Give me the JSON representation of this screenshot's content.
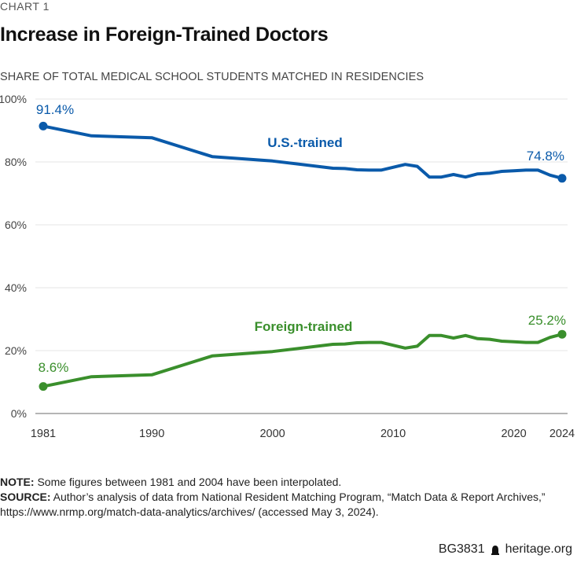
{
  "header": {
    "kicker": "CHART 1",
    "title": "Increase in Foreign-Trained Doctors",
    "subtitle": "SHARE OF TOTAL MEDICAL SCHOOL STUDENTS MATCHED IN RESIDENCIES"
  },
  "chart_data": {
    "type": "line",
    "title": "Increase in Foreign-Trained Doctors",
    "subtitle": "SHARE OF TOTAL MEDICAL SCHOOL STUDENTS MATCHED IN RESIDENCIES",
    "xlabel": "",
    "ylabel": "",
    "xlim": [
      1981,
      2024
    ],
    "ylim": [
      0,
      100
    ],
    "x_ticks": [
      1981,
      1990,
      2000,
      2010,
      2020,
      2024
    ],
    "x_tick_labels": [
      "1981",
      "1990",
      "2000",
      "2010",
      "2020",
      "2024"
    ],
    "y_ticks": [
      0,
      20,
      40,
      60,
      80,
      100
    ],
    "y_tick_labels": [
      "0%",
      "20%",
      "40%",
      "60%",
      "80%",
      "100%"
    ],
    "grid": true,
    "legend": "inline labels",
    "series": [
      {
        "name": "U.S.-trained",
        "color": "#0a5aaa",
        "x": [
          1981,
          1985,
          1990,
          1995,
          2000,
          2005,
          2006,
          2007,
          2008,
          2009,
          2011,
          2012,
          2013,
          2014,
          2015,
          2016,
          2017,
          2018,
          2019,
          2020,
          2021,
          2022,
          2023,
          2024
        ],
        "values": [
          91.4,
          88.3,
          87.7,
          81.7,
          80.3,
          78.0,
          77.9,
          77.5,
          77.4,
          77.4,
          79.2,
          78.6,
          75.2,
          75.2,
          76.0,
          75.2,
          76.2,
          76.4,
          77.0,
          77.2,
          77.4,
          77.4,
          75.8,
          74.8
        ],
        "start_label": "91.4%",
        "end_label": "74.8%"
      },
      {
        "name": "Foreign-trained",
        "color": "#3a8f2c",
        "x": [
          1981,
          1985,
          1990,
          1995,
          2000,
          2005,
          2006,
          2007,
          2008,
          2009,
          2011,
          2012,
          2013,
          2014,
          2015,
          2016,
          2017,
          2018,
          2019,
          2020,
          2021,
          2022,
          2023,
          2024
        ],
        "values": [
          8.6,
          11.7,
          12.3,
          18.3,
          19.7,
          22.0,
          22.1,
          22.5,
          22.6,
          22.6,
          20.8,
          21.4,
          24.8,
          24.8,
          24.0,
          24.8,
          23.8,
          23.6,
          23.0,
          22.8,
          22.6,
          22.6,
          24.2,
          25.2
        ],
        "start_label": "8.6%",
        "end_label": "25.2%"
      }
    ]
  },
  "notes": {
    "note_label": "NOTE:",
    "note_text": " Some figures between 1981 and 2004 have been interpolated.",
    "source_label": "SOURCE:",
    "source_text": " Author’s analysis of data from National Resident Matching Program, “Match Data & Report Archives,”",
    "source_text2": "https://www.nrmp.org/match-data-analytics/archives/ (accessed May 3, 2024)."
  },
  "footer": {
    "code": "BG3831",
    "site": "heritage.org",
    "logo_icon": "liberty-bell-icon"
  }
}
